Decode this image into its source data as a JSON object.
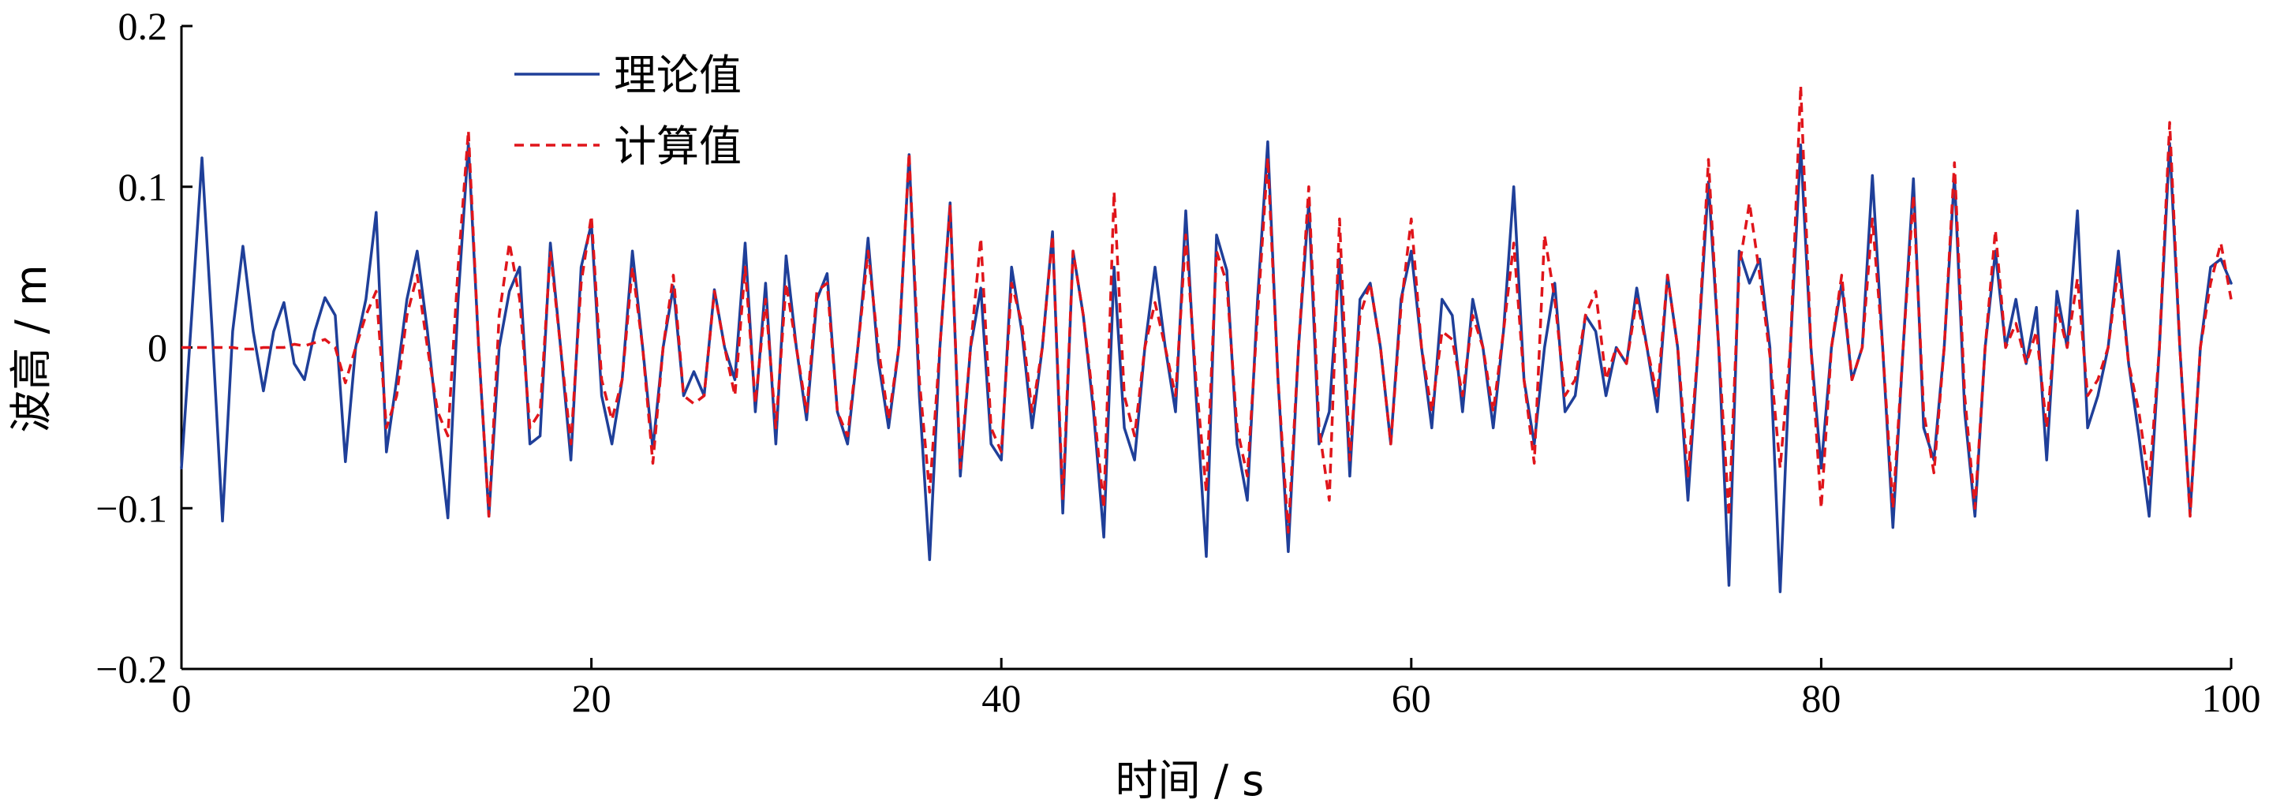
{
  "chart_data": {
    "type": "line",
    "xlabel": "时间 / s",
    "ylabel": "波高 / m",
    "xlim": [
      0,
      100
    ],
    "ylim": [
      -0.2,
      0.2
    ],
    "x_ticks": [
      0,
      20,
      40,
      60,
      80,
      100
    ],
    "x_tick_labels": [
      "0",
      "20",
      "40",
      "60",
      "80",
      "100"
    ],
    "y_ticks": [
      0.2,
      0.1,
      0,
      -0.1,
      -0.2
    ],
    "y_tick_labels": [
      "0.2",
      "0.1",
      "0",
      "−0.1",
      "−0.2"
    ],
    "grid": false,
    "legend_position": "top-left",
    "series": [
      {
        "name": "理论值",
        "color": "#1f3f99",
        "style": "solid",
        "x": [
          0,
          0.5,
          1,
          1.5,
          2,
          2.5,
          3,
          3.5,
          4,
          4.5,
          5,
          5.5,
          6,
          6.5,
          7,
          7.5,
          8,
          8.5,
          9,
          9.5,
          10,
          10.5,
          11,
          11.5,
          12,
          12.5,
          13,
          13.5,
          14,
          14.5,
          15,
          15.5,
          16,
          16.5,
          17,
          17.5,
          18,
          18.5,
          19,
          19.5,
          20,
          20.5,
          21,
          21.5,
          22,
          22.5,
          23,
          23.5,
          24,
          24.5,
          25,
          25.5,
          26,
          26.5,
          27,
          27.5,
          28,
          28.5,
          29,
          29.5,
          30,
          30.5,
          31,
          31.5,
          32,
          32.5,
          33,
          33.5,
          34,
          34.5,
          35,
          35.5,
          36,
          36.5,
          37,
          37.5,
          38,
          38.5,
          39,
          39.5,
          40,
          40.5,
          41,
          41.5,
          42,
          42.5,
          43,
          43.5,
          44,
          44.5,
          45,
          45.5,
          46,
          46.5,
          47,
          47.5,
          48,
          48.5,
          49,
          49.5,
          50,
          50.5,
          51,
          51.5,
          52,
          52.5,
          53,
          53.5,
          54,
          54.5,
          55,
          55.5,
          56,
          56.5,
          57,
          57.5,
          58,
          58.5,
          59,
          59.5,
          60,
          60.5,
          61,
          61.5,
          62,
          62.5,
          63,
          63.5,
          64,
          64.5,
          65,
          65.5,
          66,
          66.5,
          67,
          67.5,
          68,
          68.5,
          69,
          69.5,
          70,
          70.5,
          71,
          71.5,
          72,
          72.5,
          73,
          73.5,
          74,
          74.5,
          75,
          75.5,
          76,
          76.5,
          77,
          77.5,
          78,
          78.5,
          79,
          79.5,
          80,
          80.5,
          81,
          81.5,
          82,
          82.5,
          83,
          83.5,
          84,
          84.5,
          85,
          85.5,
          86,
          86.5,
          87,
          87.5,
          88,
          88.5,
          89,
          89.5,
          90,
          90.5,
          91,
          91.5,
          92,
          92.5,
          93,
          93.5,
          94,
          94.5,
          95,
          95.5,
          96,
          96.5,
          97,
          97.5,
          98,
          98.5,
          99,
          99.5,
          100
        ],
        "y": [
          -0.075,
          0.02,
          0.118,
          0.01,
          -0.108,
          0.01,
          0.063,
          0.01,
          -0.027,
          0.01,
          0.028,
          -0.01,
          -0.02,
          0.01,
          0.031,
          0.02,
          -0.071,
          0.0,
          0.03,
          0.084,
          -0.065,
          -0.02,
          0.03,
          0.06,
          0.01,
          -0.05,
          -0.106,
          0.03,
          0.127,
          0.0,
          -0.105,
          0.0,
          0.035,
          0.05,
          -0.06,
          -0.055,
          0.065,
          0.0,
          -0.07,
          0.05,
          0.077,
          -0.03,
          -0.06,
          -0.02,
          0.06,
          0.0,
          -0.063,
          0.0,
          0.038,
          -0.03,
          -0.015,
          -0.03,
          0.036,
          0.0,
          -0.02,
          0.065,
          -0.04,
          0.04,
          -0.06,
          0.057,
          0.0,
          -0.045,
          0.03,
          0.046,
          -0.04,
          -0.06,
          0.0,
          0.068,
          -0.008,
          -0.05,
          0.0,
          0.12,
          -0.03,
          -0.132,
          0.0,
          0.09,
          -0.08,
          0.0,
          0.037,
          -0.06,
          -0.07,
          0.05,
          0.01,
          -0.05,
          0.0,
          0.072,
          -0.103,
          0.06,
          0.02,
          -0.04,
          -0.118,
          0.05,
          -0.05,
          -0.07,
          0.0,
          0.05,
          0.0,
          -0.04,
          0.085,
          -0.03,
          -0.13,
          0.07,
          0.048,
          -0.06,
          -0.095,
          0.03,
          0.128,
          -0.02,
          -0.127,
          0.0,
          0.09,
          -0.06,
          -0.04,
          0.055,
          -0.08,
          0.03,
          0.04,
          0.0,
          -0.06,
          0.03,
          0.06,
          0.0,
          -0.05,
          0.03,
          0.02,
          -0.04,
          0.03,
          0.0,
          -0.05,
          0.01,
          0.1,
          -0.02,
          -0.06,
          0.0,
          0.04,
          -0.04,
          -0.03,
          0.02,
          0.01,
          -0.03,
          0.0,
          -0.01,
          0.037,
          0.0,
          -0.04,
          0.045,
          0.0,
          -0.095,
          0.0,
          0.103,
          0.0,
          -0.148,
          0.06,
          0.04,
          0.055,
          0.0,
          -0.152,
          0.0,
          0.126,
          0.0,
          -0.075,
          0.0,
          0.04,
          -0.02,
          0.0,
          0.107,
          0.0,
          -0.112,
          0.0,
          0.105,
          -0.05,
          -0.07,
          0.0,
          0.107,
          -0.04,
          -0.105,
          0.0,
          0.06,
          0.0,
          0.03,
          -0.01,
          0.025,
          -0.07,
          0.035,
          0.0,
          0.085,
          -0.05,
          -0.03,
          0.0,
          0.06,
          -0.01,
          -0.055,
          -0.105,
          0.0,
          0.127,
          0.0,
          -0.103,
          0.0,
          0.05,
          0.055,
          0.04
        ]
      },
      {
        "name": "计算值",
        "color": "#e0151b",
        "style": "dashed",
        "x": [
          0,
          0.5,
          1,
          1.5,
          2,
          2.5,
          3,
          3.5,
          4,
          4.5,
          5,
          5.5,
          6,
          6.5,
          7,
          7.5,
          8,
          8.5,
          9,
          9.5,
          10,
          10.5,
          11,
          11.5,
          12,
          12.5,
          13,
          13.5,
          14,
          14.5,
          15,
          15.5,
          16,
          16.5,
          17,
          17.5,
          18,
          18.5,
          19,
          19.5,
          20,
          20.5,
          21,
          21.5,
          22,
          22.5,
          23,
          23.5,
          24,
          24.5,
          25,
          25.5,
          26,
          26.5,
          27,
          27.5,
          28,
          28.5,
          29,
          29.5,
          30,
          30.5,
          31,
          31.5,
          32,
          32.5,
          33,
          33.5,
          34,
          34.5,
          35,
          35.5,
          36,
          36.5,
          37,
          37.5,
          38,
          38.5,
          39,
          39.5,
          40,
          40.5,
          41,
          41.5,
          42,
          42.5,
          43,
          43.5,
          44,
          44.5,
          45,
          45.5,
          46,
          46.5,
          47,
          47.5,
          48,
          48.5,
          49,
          49.5,
          50,
          50.5,
          51,
          51.5,
          52,
          52.5,
          53,
          53.5,
          54,
          54.5,
          55,
          55.5,
          56,
          56.5,
          57,
          57.5,
          58,
          58.5,
          59,
          59.5,
          60,
          60.5,
          61,
          61.5,
          62,
          62.5,
          63,
          63.5,
          64,
          64.5,
          65,
          65.5,
          66,
          66.5,
          67,
          67.5,
          68,
          68.5,
          69,
          69.5,
          70,
          70.5,
          71,
          71.5,
          72,
          72.5,
          73,
          73.5,
          74,
          74.5,
          75,
          75.5,
          76,
          76.5,
          77,
          77.5,
          78,
          78.5,
          79,
          79.5,
          80,
          80.5,
          81,
          81.5,
          82,
          82.5,
          83,
          83.5,
          84,
          84.5,
          85,
          85.5,
          86,
          86.5,
          87,
          87.5,
          88,
          88.5,
          89,
          89.5,
          90,
          90.5,
          91,
          91.5,
          92,
          92.5,
          93,
          93.5,
          94,
          94.5,
          95,
          95.5,
          96,
          96.5,
          97,
          97.5,
          98,
          98.5,
          99,
          99.5,
          100
        ],
        "y": [
          0.0,
          0.0,
          0.0,
          0.0,
          0.0,
          0.0,
          -0.001,
          -0.001,
          0.0,
          0.0,
          0.0,
          0.002,
          0.001,
          0.003,
          0.005,
          0.0,
          -0.022,
          0.0,
          0.02,
          0.035,
          -0.05,
          -0.03,
          0.02,
          0.045,
          0.0,
          -0.04,
          -0.055,
          0.05,
          0.135,
          0.0,
          -0.105,
          0.02,
          0.065,
          0.03,
          -0.05,
          -0.04,
          0.06,
          0.0,
          -0.06,
          0.04,
          0.082,
          -0.02,
          -0.045,
          -0.02,
          0.05,
          0.0,
          -0.072,
          0.0,
          0.045,
          -0.03,
          -0.035,
          -0.03,
          0.035,
          0.0,
          -0.03,
          0.05,
          -0.035,
          0.03,
          -0.05,
          0.04,
          0.0,
          -0.04,
          0.035,
          0.04,
          -0.04,
          -0.055,
          0.0,
          0.06,
          0.0,
          -0.045,
          0.0,
          0.121,
          -0.02,
          -0.09,
          0.0,
          0.088,
          -0.075,
          0.0,
          0.068,
          -0.05,
          -0.065,
          0.04,
          0.015,
          -0.04,
          0.0,
          0.07,
          -0.095,
          0.06,
          0.02,
          -0.035,
          -0.1,
          0.097,
          -0.03,
          -0.055,
          0.0,
          0.028,
          0.0,
          -0.03,
          0.07,
          -0.02,
          -0.09,
          0.06,
          0.04,
          -0.05,
          -0.08,
          0.02,
          0.118,
          -0.02,
          -0.115,
          0.0,
          0.1,
          -0.05,
          -0.095,
          0.08,
          -0.07,
          0.02,
          0.04,
          0.0,
          -0.06,
          0.025,
          0.08,
          0.0,
          -0.04,
          0.01,
          0.005,
          -0.03,
          0.02,
          0.0,
          -0.04,
          0.01,
          0.065,
          -0.02,
          -0.072,
          0.07,
          0.03,
          -0.03,
          -0.02,
          0.02,
          0.035,
          -0.02,
          0.0,
          -0.01,
          0.03,
          0.0,
          -0.03,
          0.045,
          0.0,
          -0.08,
          0.0,
          0.117,
          0.0,
          -0.105,
          0.05,
          0.09,
          0.045,
          -0.005,
          -0.075,
          0.0,
          0.163,
          0.0,
          -0.1,
          0.0,
          0.045,
          -0.02,
          0.0,
          0.08,
          0.0,
          -0.1,
          0.0,
          0.095,
          -0.04,
          -0.078,
          0.0,
          0.115,
          -0.03,
          -0.1,
          0.0,
          0.073,
          0.0,
          0.015,
          -0.01,
          0.01,
          -0.05,
          0.025,
          0.0,
          0.043,
          -0.03,
          -0.02,
          0.0,
          0.05,
          -0.01,
          -0.04,
          -0.085,
          0.0,
          0.14,
          0.0,
          -0.105,
          0.0,
          0.04,
          0.065,
          0.03
        ]
      }
    ]
  }
}
